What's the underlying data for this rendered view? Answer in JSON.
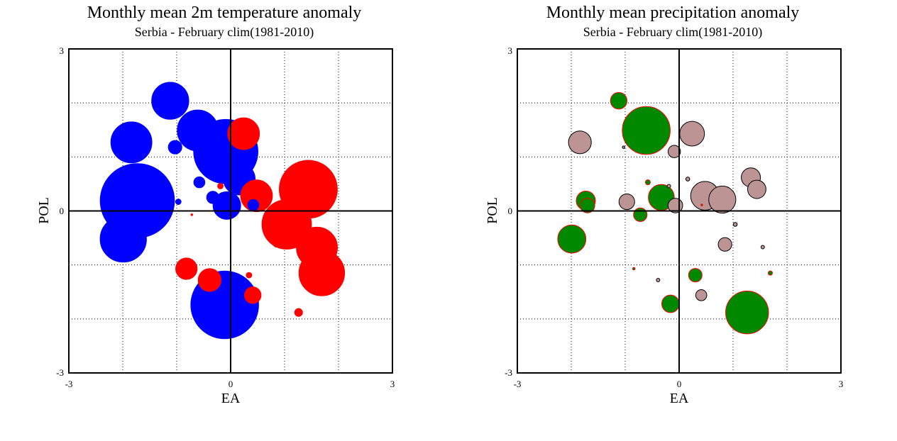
{
  "colors": {
    "temperature_positive": "#ff0000",
    "temperature_negative": "#0000ff",
    "precipitation_positive": "#008800",
    "precipitation_negative": "#bc9494",
    "precipitation_outline_positive": "#ff0000",
    "precipitation_outline_negative": "#000000"
  },
  "chart_data": [
    {
      "type": "scatter",
      "title": "Monthly mean 2m temperature anomaly",
      "subtitle": "Serbia - February  clim(1981-2010)",
      "xlabel": "EA",
      "ylabel": "POL",
      "xlim": [
        -3,
        3
      ],
      "ylim": [
        -3,
        3
      ],
      "xticks": [
        "-3",
        "0",
        "3"
      ],
      "yticks": [
        "3",
        "0",
        "-3"
      ],
      "grid": true,
      "encoding": "bubble area = anomaly magnitude; red = positive, blue = negative",
      "points": [
        {
          "x": -1.12,
          "y": 2.04,
          "magnitude": 0.45,
          "sign": "negative"
        },
        {
          "x": -1.84,
          "y": 1.27,
          "magnitude": 0.55,
          "sign": "negative"
        },
        {
          "x": -1.03,
          "y": 1.18,
          "magnitude": 0.06,
          "sign": "negative"
        },
        {
          "x": -0.61,
          "y": 1.49,
          "magnitude": 0.55,
          "sign": "negative"
        },
        {
          "x": -0.09,
          "y": 1.1,
          "magnitude": 1.35,
          "sign": "negative"
        },
        {
          "x": 0.24,
          "y": 1.43,
          "magnitude": 0.33,
          "sign": "positive"
        },
        {
          "x": 0.16,
          "y": 0.59,
          "magnitude": 0.33,
          "sign": "negative"
        },
        {
          "x": -0.58,
          "y": 0.53,
          "magnitude": 0.04,
          "sign": "negative"
        },
        {
          "x": -0.19,
          "y": 0.46,
          "magnitude": 0.01,
          "sign": "positive"
        },
        {
          "x": -1.73,
          "y": 0.19,
          "magnitude": 1.8,
          "sign": "negative"
        },
        {
          "x": -0.97,
          "y": 0.17,
          "magnitude": 0.01,
          "sign": "negative"
        },
        {
          "x": -0.33,
          "y": 0.25,
          "magnitude": 0.05,
          "sign": "negative"
        },
        {
          "x": -0.07,
          "y": 0.1,
          "magnitude": 0.25,
          "sign": "negative"
        },
        {
          "x": 0.42,
          "y": 0.11,
          "magnitude": 0.04,
          "sign": "negative"
        },
        {
          "x": 0.48,
          "y": 0.28,
          "magnitude": 0.33,
          "sign": "positive"
        },
        {
          "x": 1.33,
          "y": 0.62,
          "magnitude": 0.3,
          "sign": "positive"
        },
        {
          "x": 1.44,
          "y": 0.4,
          "magnitude": 1.1,
          "sign": "positive"
        },
        {
          "x": 1.04,
          "y": -0.25,
          "magnitude": 0.8,
          "sign": "positive"
        },
        {
          "x": -1.99,
          "y": -0.52,
          "magnitude": 0.7,
          "sign": "negative"
        },
        {
          "x": -0.72,
          "y": -0.07,
          "magnitude": 0.001,
          "sign": "positive"
        },
        {
          "x": 1.6,
          "y": -0.68,
          "magnitude": 0.55,
          "sign": "positive"
        },
        {
          "x": 0.85,
          "y": -0.62,
          "magnitude": 0.01,
          "sign": "positive"
        },
        {
          "x": 1.69,
          "y": -1.15,
          "magnitude": 0.68,
          "sign": "positive"
        },
        {
          "x": -0.82,
          "y": -1.07,
          "magnitude": 0.15,
          "sign": "positive"
        },
        {
          "x": -0.39,
          "y": -1.28,
          "magnitude": 0.17,
          "sign": "positive"
        },
        {
          "x": 0.34,
          "y": -1.19,
          "magnitude": 0.01,
          "sign": "positive"
        },
        {
          "x": 0.41,
          "y": -1.56,
          "magnitude": 0.09,
          "sign": "positive"
        },
        {
          "x": -0.11,
          "y": -1.74,
          "magnitude": 1.5,
          "sign": "negative"
        },
        {
          "x": 1.26,
          "y": -1.88,
          "magnitude": 0.02,
          "sign": "positive"
        }
      ]
    },
    {
      "type": "scatter",
      "title": "Monthly mean precipitation anomaly",
      "subtitle": "Serbia - February  clim(1981-2010)",
      "xlabel": "EA",
      "ylabel": "POL",
      "xlim": [
        -3,
        3
      ],
      "ylim": [
        -3,
        3
      ],
      "xticks": [
        "-3",
        "0",
        "3"
      ],
      "yticks": [
        "3",
        "0",
        "-3"
      ],
      "grid": true,
      "encoding": "bubble area = anomaly magnitude; green = positive, rosy brown = negative",
      "points": [
        {
          "x": -1.12,
          "y": 2.04,
          "magnitude": 0.09,
          "sign": "positive"
        },
        {
          "x": -1.84,
          "y": 1.27,
          "magnitude": 0.17,
          "sign": "negative"
        },
        {
          "x": -1.03,
          "y": 1.18,
          "magnitude": 0.002,
          "sign": "negative"
        },
        {
          "x": -0.61,
          "y": 1.49,
          "magnitude": 0.75,
          "sign": "positive"
        },
        {
          "x": -0.09,
          "y": 1.1,
          "magnitude": 0.05,
          "sign": "negative"
        },
        {
          "x": 0.24,
          "y": 1.43,
          "magnitude": 0.2,
          "sign": "negative"
        },
        {
          "x": 0.16,
          "y": 0.59,
          "magnitude": 0.005,
          "sign": "negative"
        },
        {
          "x": -0.58,
          "y": 0.53,
          "magnitude": 0.008,
          "sign": "positive"
        },
        {
          "x": -0.19,
          "y": 0.46,
          "magnitude": 0.004,
          "sign": "negative"
        },
        {
          "x": -1.73,
          "y": 0.19,
          "magnitude": 0.12,
          "sign": "positive"
        },
        {
          "x": -1.7,
          "y": 0.1,
          "magnitude": 0.07,
          "sign": "positive"
        },
        {
          "x": -0.97,
          "y": 0.17,
          "magnitude": 0.08,
          "sign": "negative"
        },
        {
          "x": -0.33,
          "y": 0.25,
          "magnitude": 0.22,
          "sign": "positive"
        },
        {
          "x": -0.07,
          "y": 0.1,
          "magnitude": 0.07,
          "sign": "negative"
        },
        {
          "x": 0.42,
          "y": 0.11,
          "magnitude": 0.001,
          "sign": "positive"
        },
        {
          "x": 0.48,
          "y": 0.28,
          "magnitude": 0.27,
          "sign": "negative"
        },
        {
          "x": 0.8,
          "y": 0.21,
          "magnitude": 0.24,
          "sign": "negative"
        },
        {
          "x": 1.33,
          "y": 0.62,
          "magnitude": 0.12,
          "sign": "negative"
        },
        {
          "x": 1.44,
          "y": 0.4,
          "magnitude": 0.11,
          "sign": "negative"
        },
        {
          "x": -0.72,
          "y": -0.07,
          "magnitude": 0.06,
          "sign": "positive"
        },
        {
          "x": 1.04,
          "y": -0.25,
          "magnitude": 0.005,
          "sign": "negative"
        },
        {
          "x": -1.99,
          "y": -0.52,
          "magnitude": 0.26,
          "sign": "positive"
        },
        {
          "x": 0.85,
          "y": -0.62,
          "magnitude": 0.06,
          "sign": "negative"
        },
        {
          "x": 1.55,
          "y": -0.67,
          "magnitude": 0.004,
          "sign": "negative"
        },
        {
          "x": -0.84,
          "y": -1.07,
          "magnitude": 0.002,
          "sign": "positive"
        },
        {
          "x": 0.3,
          "y": -1.19,
          "magnitude": 0.06,
          "sign": "positive"
        },
        {
          "x": 1.69,
          "y": -1.15,
          "magnitude": 0.006,
          "sign": "positive"
        },
        {
          "x": -0.39,
          "y": -1.28,
          "magnitude": 0.004,
          "sign": "negative"
        },
        {
          "x": 0.41,
          "y": -1.56,
          "magnitude": 0.04,
          "sign": "negative"
        },
        {
          "x": -0.16,
          "y": -1.72,
          "magnitude": 0.1,
          "sign": "positive"
        },
        {
          "x": 1.26,
          "y": -1.88,
          "magnitude": 0.6,
          "sign": "positive"
        }
      ]
    }
  ]
}
